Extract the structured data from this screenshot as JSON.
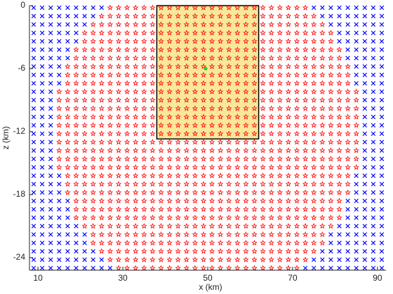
{
  "chart_data": {
    "type": "scatter",
    "xlabel": "x (km)",
    "ylabel": "z (km)",
    "xlim": [
      8,
      92
    ],
    "ylim": [
      -25.2,
      0
    ],
    "xticks": [
      10,
      30,
      50,
      70,
      90
    ],
    "yticks": [
      0,
      -6,
      -12,
      -18,
      -24
    ],
    "x": [
      9,
      11,
      13,
      15,
      17,
      19,
      21,
      23,
      25,
      27,
      29,
      31,
      33,
      35,
      37,
      39,
      41,
      43,
      45,
      47,
      49,
      51,
      53,
      55,
      57,
      59,
      61,
      63,
      65,
      67,
      69,
      71,
      73,
      75,
      77,
      79,
      81,
      83,
      85,
      87,
      89,
      91
    ],
    "z": [
      -0.2,
      -1.0,
      -1.8,
      -2.6,
      -3.4,
      -4.2,
      -5.0,
      -5.8,
      -6.6,
      -7.4,
      -8.2,
      -9.0,
      -9.8,
      -10.6,
      -11.4,
      -12.2,
      -13.0,
      -13.8,
      -14.6,
      -15.4,
      -16.2,
      -17.0,
      -17.8,
      -18.6,
      -19.4,
      -20.2,
      -21.0,
      -21.8,
      -22.6,
      -23.4,
      -24.2,
      -25.0
    ],
    "markers": {
      "x": {
        "color": "#0000ff"
      },
      "s": {
        "color": "#ff0000"
      }
    },
    "grid_markers": [
      "xxxxxxxxxssssssssssssssssssssssssxxxxxxxxx",
      "xxxxxxxxssssssssssssssssssssssssssxxxxxxxx",
      "xxxxxxxssssssssssssssssssssssssssssxxxxxxx",
      "xxxxxxssssssssssssssssssssssssssssssxxxxxx",
      "xxxxxxssssssssssssssssssssssssssssssxxxxxx",
      "xxxxxssssssssssssssssssssssssssssssssxxxxx",
      "xxxxxssssssssssssssssssssssssssssssssxxxxx",
      "xxxxssssssssssssssssssssssssssssssssssxxxx",
      "xxxxssssssssssssssssssssssssssssssssssxxxx",
      "xxxxssssssssssssssssssssssssssssssssssxxxx",
      "xxxssssssssssssssssssssssssssssssssssssxxx",
      "xxxssssssssssssssssssssssssssssssssssssxxx",
      "xxxssssssssssssssssssssssssssssssssssssxxx",
      "xxxssssssssssssssssssssssssssssssssssssxxx",
      "xxxssssssssssssssssssssssssssssssssssssxxx",
      "xxxssssssssssssssssssssssssssssssssssssxxx",
      "xxxssssssssssssssssssssssssssssssssssssxxx",
      "xxxssssssssssssssssssssssssssssssssssssxxx",
      "xxxssssssssssssssssssssssssssssssssssssxxx",
      "xxxssssssssssssssssssssssssssssssssssssxxx",
      "xxxxssssssssssssssssssssssssssssssssssxxxx",
      "xxxxssssssssssssssssssssssssssssssssssxxxx",
      "xxxxssssssssssssssssssssssssssssssssssxxxx",
      "xxxxxssssssssssssssssssssssssssssssssxxxxx",
      "xxxxxssssssssssssssssssssssssssssssssxxxxx",
      "xxxxxssssssssssssssssssssssssssssssssxxxxx",
      "xxxxxxssssssssssssssssssssssssssssssxxxxxx",
      "xxxxxxxssssssssssssssssssssssssssssxxxxxxx",
      "xxxxxxxssssssssssssssssssssssssssssxxxxxxx",
      "xxxxxxxxssssssssssssssssssssssssssxxxxxxxx",
      "xxxxxxxxxssssssssssssssssssssssssxxxxxxxxx",
      "xxxxxxxxxxssssssssssssssssssssssxxxxxxxxxx"
    ],
    "region": {
      "x": [
        38,
        62
      ],
      "z": [
        0,
        -12.7
      ],
      "color": "#f8e89a"
    },
    "source": {
      "x": 49.5,
      "z": -6,
      "color": "#00dd00"
    }
  }
}
